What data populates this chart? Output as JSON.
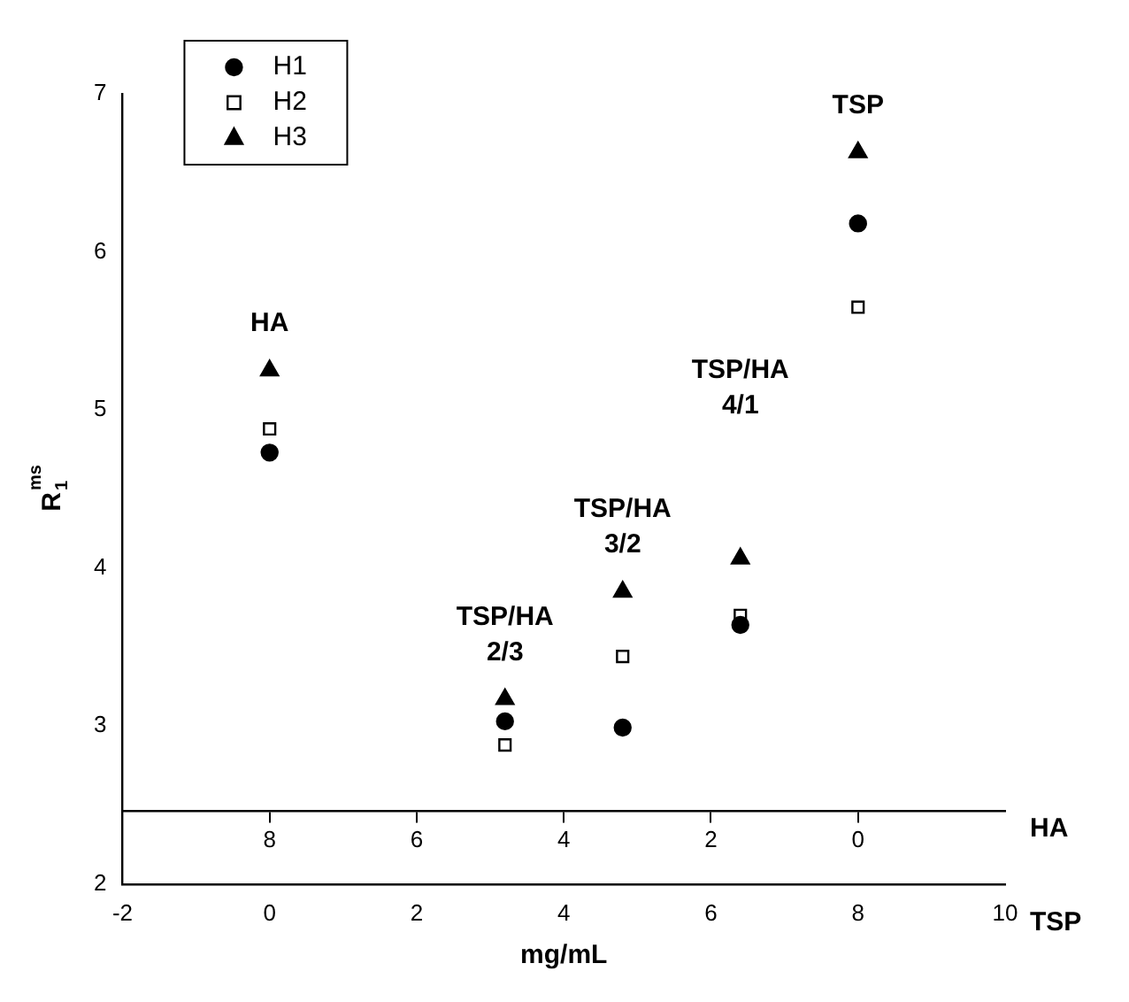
{
  "chart_data": {
    "type": "scatter",
    "xlabel": "mg/mL",
    "ylabel": "R$_{1}$$^{ms}$",
    "x2label": "HA",
    "xlim": [
      -2,
      10
    ],
    "xticks": [
      -2,
      0,
      2,
      4,
      6,
      8,
      10
    ],
    "x2lim": [
      10,
      -2
    ],
    "x2ticks": [
      8,
      6,
      4,
      2,
      0
    ],
    "ylim": [
      2,
      7
    ],
    "yticks": [
      2,
      3,
      4,
      5,
      6,
      7
    ],
    "x": [
      0,
      3.2,
      4.8,
      6.4,
      8
    ],
    "series": [
      {
        "name": "H1",
        "color": "#000000",
        "marker": "circle",
        "values": [
          4.73,
          3.03,
          2.99,
          3.64,
          6.18
        ]
      },
      {
        "name": "H2",
        "color": "#000000",
        "marker": "square",
        "values": [
          4.88,
          2.88,
          3.44,
          3.7,
          5.65
        ]
      },
      {
        "name": "H3",
        "color": "#000000",
        "marker": "triangle",
        "values": [
          5.25,
          3.17,
          3.85,
          4.06,
          6.63
        ]
      }
    ],
    "annotations": [
      "HA",
      "TSP/HA 2/3",
      "TSP/HA 3/2",
      "TSP/HA 4/1",
      "TSP",
      "TSP"
    ],
    "legend": "top left",
    "grid": false
  }
}
